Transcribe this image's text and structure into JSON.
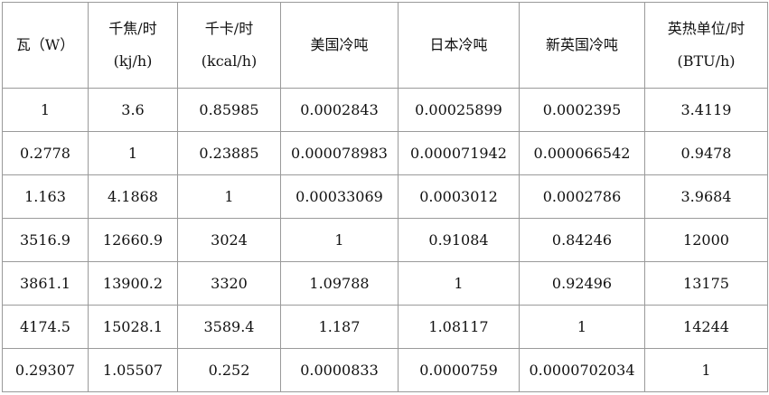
{
  "table": {
    "header": [
      [
        "瓦（W）"
      ],
      [
        "千焦/时",
        "(kj/h)"
      ],
      [
        "千卡/时",
        "(kcal/h)"
      ],
      [
        "美国冷吨"
      ],
      [
        "日本冷吨"
      ],
      [
        "新英国冷吨"
      ],
      [
        "英热单位/时",
        "(BTU/h)"
      ]
    ],
    "rows": [
      [
        "1",
        "3.6",
        "0.85985",
        "0.0002843",
        "0.00025899",
        "0.0002395",
        "3.4119"
      ],
      [
        "0.2778",
        "1",
        "0.23885",
        "0.000078983",
        "0.000071942",
        "0.000066542",
        "0.9478"
      ],
      [
        "1.163",
        "4.1868",
        "1",
        "0.00033069",
        "0.0003012",
        "0.0002786",
        "3.9684"
      ],
      [
        "3516.9",
        "12660.9",
        "3024",
        "1",
        "0.91084",
        "0.84246",
        "12000"
      ],
      [
        "3861.1",
        "13900.2",
        "3320",
        "1.09788",
        "1",
        "0.92496",
        "13175"
      ],
      [
        "4174.5",
        "15028.1",
        "3589.4",
        "1.187",
        "1.08117",
        "1",
        "14244"
      ],
      [
        "0.29307",
        "1.05507",
        "0.252",
        "0.0000833",
        "0.0000759",
        "0.0000702034",
        "1"
      ]
    ]
  }
}
